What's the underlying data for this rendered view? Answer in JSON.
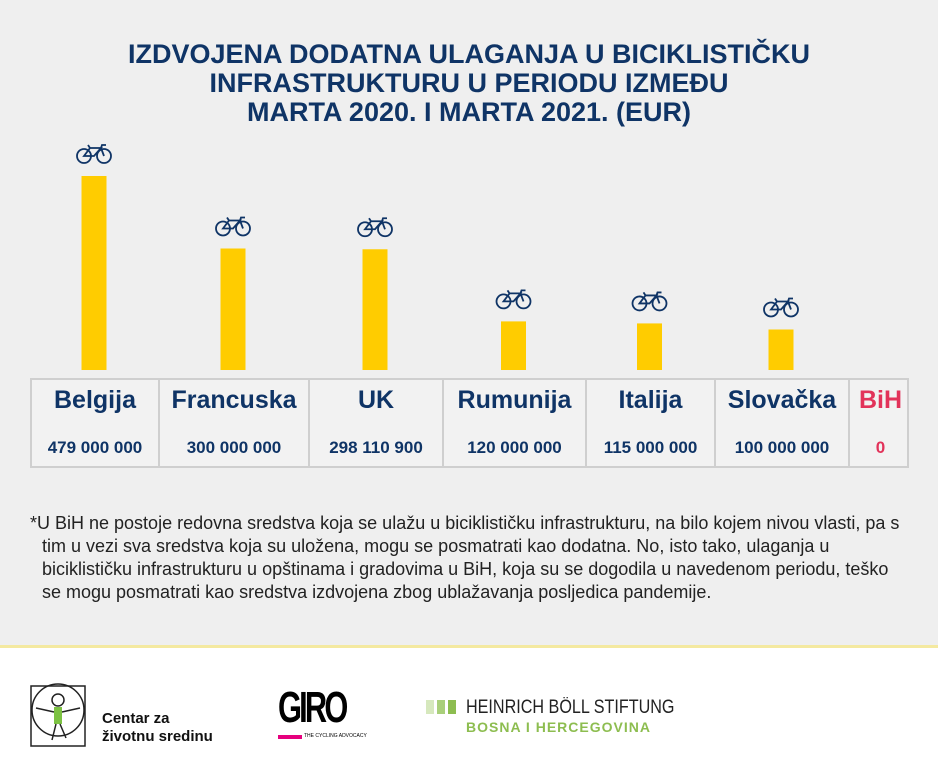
{
  "title": [
    "IZDVOJENA DODATNA ULAGANJA U BICIKLISTIČKU",
    "INFRASTRUKTURU U PERIODU IZMEĐU",
    "MARTA 2020. I MARTA 2021. (EUR)"
  ],
  "chart_data": {
    "type": "bar",
    "title": "IZDVOJENA DODATNA ULAGANJA U BICIKLISTIČKU INFRASTRUKTURU U PERIODU IZMEĐU MARTA 2020. I MARTA 2021. (EUR)",
    "categories": [
      "Belgija",
      "Francuska",
      "UK",
      "Rumunija",
      "Italija",
      "Slovačka",
      "BiH"
    ],
    "values": [
      479000000,
      300000000,
      298110900,
      120000000,
      115000000,
      100000000,
      0
    ],
    "value_labels": [
      "479 000 000",
      "300 000 000",
      "298 110 900",
      "120 000 000",
      "115 000 000",
      "100 000 000",
      "0"
    ],
    "bar_color": "#ffcc00",
    "highlight_color": "#e2335a",
    "marker_icon": "bicycle-icon",
    "grid": false
  },
  "note": "*U BiH ne postoje redovna sredstva koja se ulažu u biciklističku infrastrukturu, na bilo kojem nivou vlasti, pa s tim u vezi sva sredstva koja su uložena, mogu se posmatrati kao dodatna. No, isto tako, ulaganja u biciklističku infrastrukturu u opštinama i gradovima u BiH, koja su se dogodila u navedenom periodu, teško se mogu posmatrati kao sredstva izdvojena zbog ublažavanja posljedica pandemije.",
  "logos": {
    "czzs": [
      "Centar za",
      "životnu sredinu"
    ],
    "giro": "GIRO",
    "giro_tagline": "THE CYCLING ADVOCACY",
    "hbs_line1": "HEINRICH BÖLL STIFTUNG",
    "hbs_line2": "BOSNA I HERCEGOVINA"
  }
}
